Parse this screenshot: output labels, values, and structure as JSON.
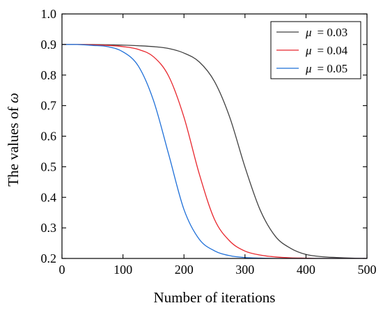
{
  "chart_data": {
    "type": "line",
    "title": "",
    "xlabel": "Number of iterations",
    "ylabel_prefix": "The values of ",
    "ylabel_symbol": "ω",
    "xlim": [
      0,
      500
    ],
    "ylim": [
      0.2,
      1.0
    ],
    "xticks": [
      "0",
      "100",
      "200",
      "300",
      "400",
      "500"
    ],
    "yticks": [
      "0.2",
      "0.3",
      "0.4",
      "0.5",
      "0.6",
      "0.7",
      "0.8",
      "0.9",
      "1.0"
    ],
    "grid": false,
    "legend_position": "top-right",
    "legend_symbol": "μ",
    "x": [
      0,
      25,
      50,
      75,
      100,
      125,
      150,
      175,
      200,
      225,
      250,
      275,
      300,
      325,
      350,
      375,
      400,
      425,
      450,
      475,
      500
    ],
    "series": [
      {
        "name": "= 0.03",
        "color": "#404040",
        "values": [
          0.9,
          0.9,
          0.9,
          0.899,
          0.898,
          0.896,
          0.893,
          0.887,
          0.872,
          0.843,
          0.779,
          0.662,
          0.499,
          0.358,
          0.272,
          0.233,
          0.213,
          0.206,
          0.203,
          0.201,
          0.2
        ]
      },
      {
        "name": "= 0.04",
        "color": "#e8262d",
        "values": [
          0.9,
          0.9,
          0.899,
          0.897,
          0.893,
          0.884,
          0.86,
          0.796,
          0.662,
          0.477,
          0.328,
          0.257,
          0.224,
          0.211,
          0.205,
          0.202,
          0.201,
          0.2,
          0.2,
          0.2,
          0.2
        ]
      },
      {
        "name": "= 0.05",
        "color": "#1e6fd8",
        "values": [
          0.9,
          0.9,
          0.897,
          0.893,
          0.876,
          0.83,
          0.717,
          0.54,
          0.36,
          0.263,
          0.225,
          0.209,
          0.203,
          0.201,
          0.2,
          0.2,
          0.2,
          0.2,
          0.2,
          0.2,
          0.2
        ]
      }
    ]
  }
}
